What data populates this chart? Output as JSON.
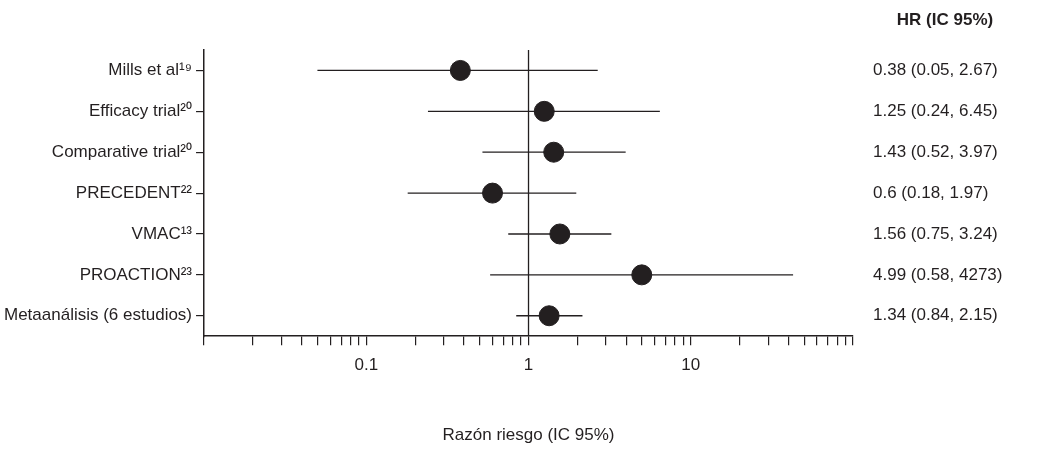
{
  "chart_data": {
    "type": "scatter",
    "orientation": "horizontal",
    "categories": [
      "Mills et al¹⁹",
      "Efficacy trial²⁰",
      "Comparative trial²⁰",
      "PRECEDENT²²",
      "VMAC¹³",
      "PROACTION²³",
      "Metaanálisis (6 estudios)"
    ],
    "values": [
      0.38,
      1.25,
      1.43,
      0.6,
      1.56,
      4.99,
      1.34
    ],
    "errors": [
      [
        0.05,
        2.67
      ],
      [
        0.24,
        6.45
      ],
      [
        0.52,
        3.97
      ],
      [
        0.18,
        1.97
      ],
      [
        0.75,
        3.24
      ],
      [
        0.58,
        42.73
      ],
      [
        0.84,
        2.15
      ]
    ],
    "color": "#231f20",
    "marker": "circle",
    "log": "x",
    "grid": false,
    "legend": false,
    "xlim": [
      0.01,
      100
    ],
    "xticks": [
      {
        "value": 0.01,
        "label": null
      },
      {
        "value": 0.02,
        "label": null
      },
      {
        "value": 0.03,
        "label": null
      },
      {
        "value": 0.04,
        "label": null
      },
      {
        "value": 0.05,
        "label": null
      },
      {
        "value": 0.06,
        "label": null
      },
      {
        "value": 0.07,
        "label": null
      },
      {
        "value": 0.08,
        "label": null
      },
      {
        "value": 0.09,
        "label": null
      },
      0.1,
      {
        "value": 0.2,
        "label": null
      },
      {
        "value": 0.3,
        "label": null
      },
      {
        "value": 0.4,
        "label": null
      },
      {
        "value": 0.5,
        "label": null
      },
      {
        "value": 0.6,
        "label": null
      },
      {
        "value": 0.7,
        "label": null
      },
      {
        "value": 0.8,
        "label": null
      },
      {
        "value": 0.9,
        "label": null
      },
      1,
      {
        "value": 2,
        "label": null
      },
      {
        "value": 3,
        "label": null
      },
      {
        "value": 4,
        "label": null
      },
      {
        "value": 5,
        "label": null
      },
      {
        "value": 6,
        "label": null
      },
      {
        "value": 7,
        "label": null
      },
      {
        "value": 8,
        "label": null
      },
      {
        "value": 9,
        "label": null
      },
      10,
      {
        "value": 20,
        "label": null
      },
      {
        "value": 30,
        "label": null
      },
      {
        "value": 40,
        "label": null
      },
      {
        "value": 50,
        "label": null
      },
      {
        "value": 60,
        "label": null
      },
      {
        "value": 70,
        "label": null
      },
      {
        "value": 80,
        "label": null
      },
      {
        "value": 90,
        "label": null
      },
      {
        "value": 100,
        "label": null
      }
    ],
    "ref_lines": [
      {
        "axis": "x",
        "value": 1,
        "color": "#231f20"
      }
    ],
    "xlabel": "Razón riesgo (IC 95%)",
    "annotations": [
      "HR (IC 95%)",
      "0.38 (0.05, 2.67)",
      "1.25 (0.24, 6.45)",
      "1.43 (0.52, 3.97)",
      "0.6 (0.18, 1.97)",
      "1.56 (0.75, 3.24)",
      "4.99 (0.58, 4273)",
      "1.34 (0.84, 2.15)"
    ]
  }
}
